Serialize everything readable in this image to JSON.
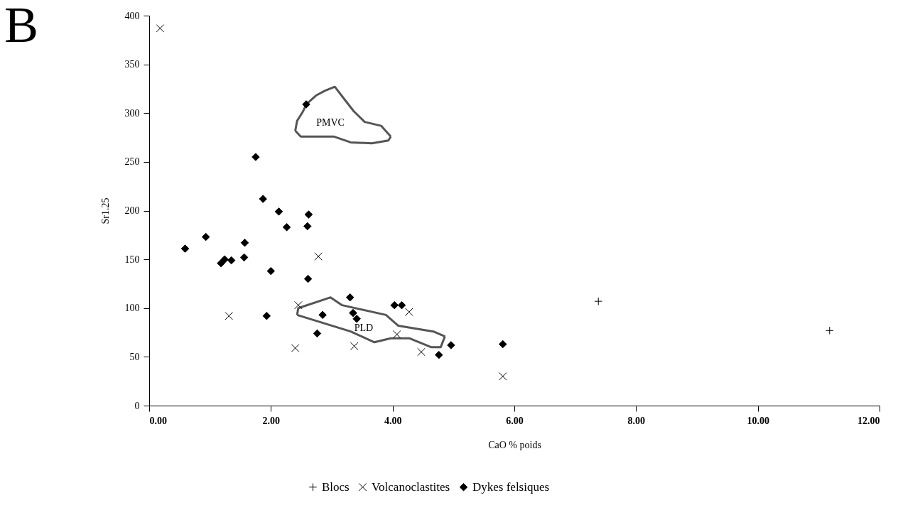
{
  "chart_data": {
    "type": "scatter",
    "title": "B",
    "xlabel": "CaO % poids",
    "ylabel": "Sr1.25",
    "xlim": [
      0,
      12
    ],
    "ylim": [
      0,
      400
    ],
    "xticks": [
      {
        "value": 0,
        "label": "0.00"
      },
      {
        "value": 2,
        "label": "2.00"
      },
      {
        "value": 4,
        "label": "4.00"
      },
      {
        "value": 6,
        "label": "6.00"
      },
      {
        "value": 8,
        "label": "8.00"
      },
      {
        "value": 10,
        "label": "10.00"
      },
      {
        "value": 12,
        "label": "12.00"
      }
    ],
    "yticks": [
      0,
      50,
      100,
      150,
      200,
      250,
      300,
      350,
      400
    ],
    "grid": false,
    "legend": "bottom",
    "annotations": [
      "PMVC",
      "PLD"
    ],
    "series": [
      {
        "name": "Blocs",
        "color": "#000000",
        "marker": "plus",
        "x": [
          7.38,
          11.18
        ],
        "values": [
          107,
          77
        ]
      },
      {
        "name": "Volcanoclastites",
        "color": "#000000",
        "marker": "cross",
        "x": [
          0.18,
          1.31,
          2.78,
          2.45,
          2.4,
          3.37,
          4.07,
          4.27,
          4.47,
          5.81
        ],
        "values": [
          387,
          92,
          153,
          103,
          59,
          61,
          73,
          96,
          55,
          30
        ]
      },
      {
        "type": "line",
        "color": "#555555",
        "line_style": "solid",
        "x": [
          2.4,
          2.43,
          2.53,
          2.58,
          2.74,
          2.89,
          3.05,
          3.21,
          3.36,
          3.54,
          3.81,
          3.97
        ],
        "values": [
          282,
          292,
          302,
          309,
          318,
          323,
          327,
          314,
          302,
          291,
          287,
          276
        ]
      },
      {
        "type": "line",
        "color": "#555555",
        "line_style": "solid",
        "x": [
          2.4,
          2.49,
          3.03,
          3.31,
          3.66,
          3.93,
          3.97
        ],
        "values": [
          282,
          276,
          276,
          270,
          269,
          272,
          276
        ]
      },
      {
        "type": "line",
        "color": "#555555",
        "line_style": "solid",
        "x": [
          2.43,
          2.45,
          2.98,
          3.17,
          3.89,
          4.09,
          4.67,
          4.86
        ],
        "values": [
          93,
          100,
          111,
          103,
          93,
          82,
          76,
          71
        ]
      },
      {
        "type": "line",
        "color": "#555555",
        "line_style": "solid",
        "x": [
          2.43,
          3.31,
          3.7,
          3.97,
          4.28,
          4.63,
          4.79,
          4.86
        ],
        "values": [
          93,
          76,
          65,
          69,
          69,
          60,
          60,
          71
        ]
      },
      {
        "name": "Dykes felsiques",
        "color": "#000000",
        "marker": "diamond",
        "x": [
          0.59,
          0.93,
          1.18,
          1.24,
          1.35,
          1.57,
          1.56,
          2.0,
          1.93,
          2.61,
          2.6,
          2.26,
          2.62,
          2.13,
          1.87,
          1.75,
          2.58,
          3.3,
          3.35,
          3.41,
          2.85,
          2.76,
          4.03,
          4.15,
          4.76,
          4.96,
          5.81
        ],
        "values": [
          161,
          173,
          146,
          150,
          149,
          167,
          152,
          138,
          92,
          130,
          184,
          183,
          196,
          199,
          212,
          255,
          309,
          111,
          95,
          89,
          93,
          74,
          103,
          103,
          52,
          62,
          63
        ]
      }
    ]
  }
}
